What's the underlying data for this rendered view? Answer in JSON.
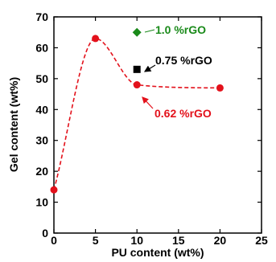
{
  "chart_data": {
    "type": "scatter",
    "xlabel": "PU content (wt%)",
    "ylabel": "Gel content (wt%)",
    "xlim": [
      0,
      25
    ],
    "ylim": [
      0,
      70
    ],
    "x_ticks": [
      0,
      5,
      10,
      15,
      20,
      25
    ],
    "y_ticks": [
      0,
      10,
      20,
      30,
      40,
      50,
      60,
      70
    ],
    "grid": false,
    "series": [
      {
        "name": "0.62 %rGO",
        "color": "#e3111b",
        "marker": "circle",
        "line": "dashed",
        "points": [
          [
            0,
            14
          ],
          [
            5,
            63
          ],
          [
            10,
            48
          ],
          [
            20,
            47
          ]
        ]
      },
      {
        "name": "0.75 %rGO",
        "color": "#000000",
        "marker": "square",
        "points": [
          [
            10,
            53
          ]
        ]
      },
      {
        "name": "1.0 %rGO",
        "color": "#1a8a1a",
        "marker": "diamond",
        "points": [
          [
            10,
            65
          ]
        ]
      }
    ]
  }
}
